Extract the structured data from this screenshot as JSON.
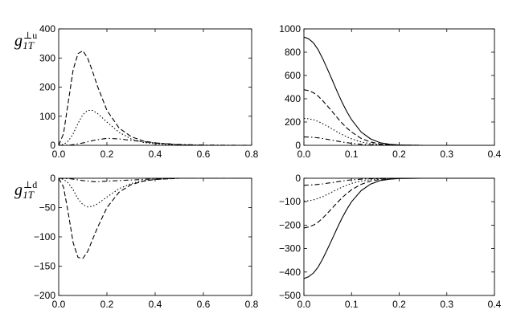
{
  "ylabels": {
    "u": {
      "base": "g",
      "sub": "1T",
      "sup": "⊥u"
    },
    "d": {
      "base": "g",
      "sub": "1T",
      "sup": "⊥d"
    }
  },
  "chart_data": [
    {
      "type": "line",
      "panel": "top-left",
      "xlim": [
        0,
        0.8
      ],
      "ylim": [
        0,
        400
      ],
      "xticks": [
        0.0,
        0.2,
        0.4,
        0.6,
        0.8
      ],
      "yticks": [
        0,
        100,
        200,
        300,
        400
      ],
      "xtick_labels": [
        "0.0",
        "0.2",
        "0.4",
        "0.6",
        "0.8"
      ],
      "ytick_labels": [
        "0",
        "100",
        "200",
        "300",
        "400"
      ],
      "ylabel": "g⊥1T u",
      "grid": false,
      "series": [
        {
          "style": "dashed",
          "x": [
            0,
            0.02,
            0.04,
            0.06,
            0.08,
            0.1,
            0.12,
            0.14,
            0.16,
            0.2,
            0.25,
            0.3,
            0.35,
            0.4,
            0.5,
            0.6,
            0.8
          ],
          "y": [
            0,
            40,
            150,
            260,
            315,
            325,
            300,
            255,
            205,
            120,
            60,
            30,
            15,
            8,
            2,
            0,
            0
          ]
        },
        {
          "style": "dotted",
          "x": [
            0,
            0.02,
            0.04,
            0.06,
            0.08,
            0.1,
            0.12,
            0.14,
            0.16,
            0.2,
            0.25,
            0.3,
            0.35,
            0.4,
            0.5,
            0.6,
            0.8
          ],
          "y": [
            0,
            3,
            15,
            40,
            75,
            105,
            120,
            120,
            110,
            80,
            45,
            22,
            10,
            5,
            1,
            0,
            0
          ]
        },
        {
          "style": "dashdot",
          "x": [
            0,
            0.05,
            0.1,
            0.15,
            0.2,
            0.25,
            0.3,
            0.4,
            0.5,
            0.6,
            0.8
          ],
          "y": [
            0,
            1,
            8,
            18,
            24,
            22,
            17,
            8,
            3,
            1,
            0
          ]
        }
      ]
    },
    {
      "type": "line",
      "panel": "top-right",
      "xlim": [
        0,
        0.4
      ],
      "ylim": [
        0,
        1000
      ],
      "xticks": [
        0.0,
        0.1,
        0.2,
        0.3,
        0.4
      ],
      "yticks": [
        0,
        200,
        400,
        600,
        800,
        1000
      ],
      "xtick_labels": [
        "0.0",
        "0.1",
        "0.2",
        "0.3",
        "0.4"
      ],
      "ytick_labels": [
        "0",
        "200",
        "400",
        "600",
        "800",
        "1000"
      ],
      "grid": false,
      "series": [
        {
          "style": "solid",
          "x": [
            0,
            0.01,
            0.02,
            0.03,
            0.04,
            0.05,
            0.06,
            0.07,
            0.08,
            0.09,
            0.1,
            0.12,
            0.14,
            0.16,
            0.18,
            0.2,
            0.25,
            0.3,
            0.4
          ],
          "y": [
            930,
            915,
            880,
            820,
            740,
            650,
            555,
            460,
            370,
            290,
            220,
            115,
            55,
            22,
            9,
            3,
            0,
            0,
            0
          ]
        },
        {
          "style": "dashed",
          "x": [
            0,
            0.01,
            0.02,
            0.03,
            0.04,
            0.05,
            0.06,
            0.07,
            0.08,
            0.09,
            0.1,
            0.12,
            0.14,
            0.16,
            0.18,
            0.2,
            0.25,
            0.3,
            0.4
          ],
          "y": [
            478,
            470,
            452,
            422,
            381,
            335,
            286,
            237,
            191,
            150,
            114,
            60,
            28,
            11,
            5,
            2,
            0,
            0,
            0
          ]
        },
        {
          "style": "dotted",
          "x": [
            0,
            0.01,
            0.02,
            0.03,
            0.04,
            0.05,
            0.06,
            0.07,
            0.08,
            0.09,
            0.1,
            0.12,
            0.14,
            0.16,
            0.18,
            0.2,
            0.25,
            0.3,
            0.4
          ],
          "y": [
            232,
            228,
            220,
            205,
            185,
            163,
            139,
            115,
            93,
            73,
            55,
            29,
            14,
            6,
            2,
            1,
            0,
            0,
            0
          ]
        },
        {
          "style": "dashdot",
          "x": [
            0,
            0.01,
            0.02,
            0.03,
            0.04,
            0.05,
            0.06,
            0.07,
            0.08,
            0.09,
            0.1,
            0.12,
            0.14,
            0.16,
            0.18,
            0.2,
            0.25,
            0.3,
            0.4
          ],
          "y": [
            72,
            71,
            68,
            64,
            58,
            51,
            43,
            36,
            29,
            23,
            17,
            9,
            4,
            2,
            1,
            0,
            0,
            0,
            0
          ]
        }
      ]
    },
    {
      "type": "line",
      "panel": "bottom-left",
      "xlim": [
        0,
        0.8
      ],
      "ylim": [
        -200,
        0
      ],
      "xticks": [
        0.0,
        0.2,
        0.4,
        0.6,
        0.8
      ],
      "yticks": [
        -200,
        -150,
        -100,
        -50,
        0
      ],
      "xtick_labels": [
        "0.0",
        "0.2",
        "0.4",
        "0.6",
        "0.8"
      ],
      "ytick_labels": [
        "−200",
        "−150",
        "−100",
        "−50",
        "0"
      ],
      "ylabel": "g⊥1T d",
      "grid": false,
      "series": [
        {
          "style": "dashed",
          "x": [
            0,
            0.02,
            0.04,
            0.06,
            0.08,
            0.1,
            0.12,
            0.14,
            0.16,
            0.2,
            0.25,
            0.3,
            0.35,
            0.4,
            0.5,
            0.6,
            0.8
          ],
          "y": [
            0,
            -15,
            -60,
            -110,
            -135,
            -137,
            -125,
            -105,
            -85,
            -50,
            -24,
            -11,
            -5,
            -2,
            0,
            0,
            0
          ]
        },
        {
          "style": "dotted",
          "x": [
            0,
            0.02,
            0.04,
            0.06,
            0.08,
            0.1,
            0.12,
            0.14,
            0.16,
            0.2,
            0.25,
            0.3,
            0.35,
            0.4,
            0.5,
            0.6,
            0.8
          ],
          "y": [
            0,
            -2,
            -8,
            -20,
            -35,
            -45,
            -49,
            -48,
            -44,
            -32,
            -18,
            -9,
            -4,
            -2,
            0,
            0,
            0
          ]
        },
        {
          "style": "dashdot",
          "x": [
            0,
            0.05,
            0.1,
            0.15,
            0.2,
            0.25,
            0.3,
            0.4,
            0.5,
            0.6,
            0.8
          ],
          "y": [
            0,
            -1,
            -4,
            -6,
            -5,
            -4,
            -3,
            -1,
            0,
            0,
            0
          ]
        }
      ]
    },
    {
      "type": "line",
      "panel": "bottom-right",
      "xlim": [
        0,
        0.4
      ],
      "ylim": [
        -500,
        0
      ],
      "xticks": [
        0.0,
        0.1,
        0.2,
        0.3,
        0.4
      ],
      "yticks": [
        -500,
        -400,
        -300,
        -200,
        -100,
        0
      ],
      "xtick_labels": [
        "0.0",
        "0.1",
        "0.2",
        "0.3",
        "0.4"
      ],
      "ytick_labels": [
        "−500",
        "−400",
        "−300",
        "−200",
        "−100",
        "0"
      ],
      "grid": false,
      "series": [
        {
          "style": "solid",
          "x": [
            0,
            0.01,
            0.02,
            0.03,
            0.04,
            0.05,
            0.06,
            0.07,
            0.08,
            0.09,
            0.1,
            0.12,
            0.14,
            0.16,
            0.18,
            0.2,
            0.25,
            0.3,
            0.4
          ],
          "y": [
            -428,
            -420,
            -404,
            -378,
            -342,
            -300,
            -256,
            -212,
            -170,
            -133,
            -100,
            -53,
            -25,
            -10,
            -4,
            -1,
            0,
            0,
            0
          ]
        },
        {
          "style": "dashed",
          "x": [
            0,
            0.01,
            0.02,
            0.03,
            0.04,
            0.05,
            0.06,
            0.07,
            0.08,
            0.09,
            0.1,
            0.12,
            0.14,
            0.16,
            0.18,
            0.2,
            0.25,
            0.3,
            0.4
          ],
          "y": [
            -212,
            -208,
            -200,
            -187,
            -169,
            -148,
            -126,
            -104,
            -83,
            -65,
            -49,
            -26,
            -12,
            -5,
            -2,
            0,
            0,
            0,
            0
          ]
        },
        {
          "style": "dotted",
          "x": [
            0,
            0.01,
            0.02,
            0.03,
            0.04,
            0.05,
            0.06,
            0.07,
            0.08,
            0.09,
            0.1,
            0.12,
            0.14,
            0.16,
            0.18,
            0.2,
            0.25,
            0.3,
            0.4
          ],
          "y": [
            -98,
            -96,
            -92,
            -86,
            -78,
            -68,
            -58,
            -48,
            -38,
            -30,
            -22,
            -12,
            -6,
            -2,
            -1,
            0,
            0,
            0,
            0
          ]
        },
        {
          "style": "dashdot",
          "x": [
            0,
            0.01,
            0.02,
            0.03,
            0.04,
            0.05,
            0.06,
            0.07,
            0.08,
            0.09,
            0.1,
            0.12,
            0.14,
            0.16,
            0.18,
            0.2,
            0.25,
            0.3,
            0.4
          ],
          "y": [
            -30,
            -29,
            -28,
            -26,
            -24,
            -21,
            -18,
            -15,
            -12,
            -9,
            -7,
            -4,
            -2,
            -1,
            0,
            0,
            0,
            0,
            0
          ]
        }
      ]
    }
  ]
}
